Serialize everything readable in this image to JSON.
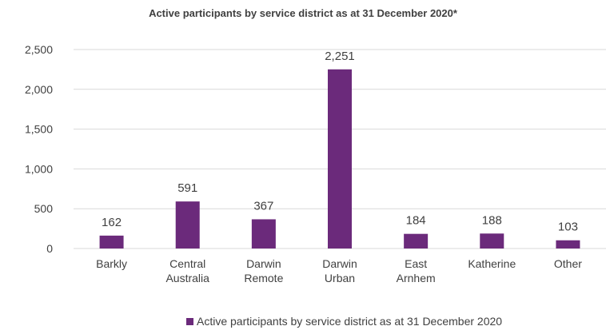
{
  "chart_data": {
    "type": "bar",
    "title": "Active participants by service district as at 31 December 2020*",
    "categories": [
      [
        "Barkly"
      ],
      [
        "Central",
        "Australia"
      ],
      [
        "Darwin",
        "Remote"
      ],
      [
        "Darwin",
        "Urban"
      ],
      [
        "East",
        "Arnhem"
      ],
      [
        "Katherine"
      ],
      [
        "Other"
      ]
    ],
    "series": [
      {
        "name": "Active participants by service district as at 31 December 2020",
        "values": [
          162,
          591,
          367,
          2251,
          184,
          188,
          103
        ],
        "value_labels": [
          "162",
          "591",
          "367",
          "2,251",
          "184",
          "188",
          "103"
        ],
        "color": "#6b2a7b"
      }
    ],
    "ylim": [
      0,
      2500
    ],
    "yticks": [
      0,
      500,
      1000,
      1500,
      2000,
      2500
    ],
    "ytick_labels": [
      "0",
      "500",
      "1,000",
      "1,500",
      "2,000",
      "2,500"
    ],
    "xlabel": "",
    "ylabel": "",
    "grid": true,
    "gridline_color": "#d9d9d9",
    "legend_position": "bottom"
  }
}
